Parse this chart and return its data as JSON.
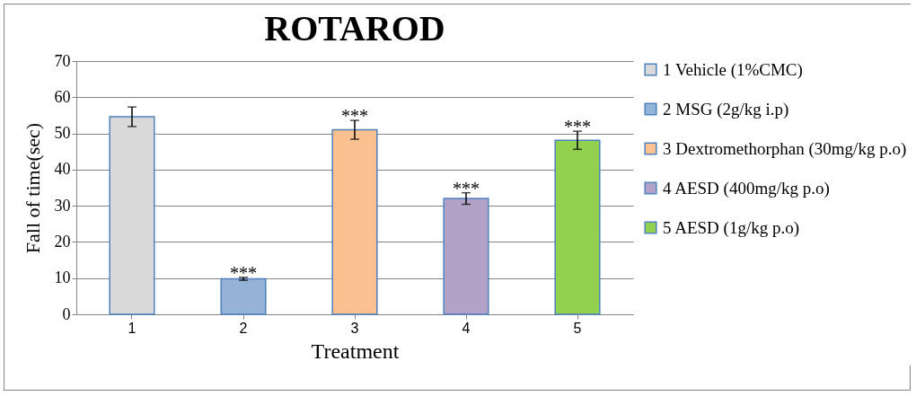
{
  "chart_data": {
    "type": "bar",
    "title": "ROTAROD",
    "xlabel": "Treatment",
    "ylabel": "Fall of time(sec)",
    "categories": [
      "1",
      "2",
      "3",
      "4",
      "5"
    ],
    "series": [
      {
        "name": "1 Vehicle (1%CMC)",
        "color": "#d9d9d9",
        "values": [
          54.6,
          null,
          null,
          null,
          null
        ],
        "errors": [
          2.7,
          null,
          null,
          null,
          null
        ]
      },
      {
        "name": "2 MSG (2g/kg i.p)",
        "color": "#95b3d7",
        "values": [
          null,
          9.8,
          null,
          null,
          null
        ],
        "errors": [
          null,
          0.4,
          null,
          null,
          null
        ]
      },
      {
        "name": "3 Dextromethorphan (30mg/kg p.o)",
        "color": "#fac090",
        "values": [
          null,
          null,
          51.0,
          null,
          null
        ],
        "errors": [
          null,
          null,
          2.6,
          null,
          null
        ]
      },
      {
        "name": "4 AESD (400mg/kg p.o)",
        "color": "#b3a2c7",
        "values": [
          null,
          null,
          null,
          32.0,
          null
        ],
        "errors": [
          null,
          null,
          null,
          1.6,
          null
        ]
      },
      {
        "name": "5 AESD (1g/kg p.o)",
        "color": "#92d050",
        "values": [
          null,
          null,
          null,
          null,
          48.1
        ],
        "errors": [
          null,
          null,
          null,
          null,
          2.5
        ]
      }
    ],
    "annotations": [
      {
        "text": "***",
        "x": "2",
        "y": 10.2
      },
      {
        "text": "***",
        "x": "3",
        "y": 53.6
      },
      {
        "text": "***",
        "x": "4",
        "y": 33.6
      },
      {
        "text": "***",
        "x": "5",
        "y": 50.6
      }
    ],
    "ylim": [
      0,
      70
    ],
    "yticks": [
      0,
      10,
      20,
      30,
      40,
      50,
      60,
      70
    ],
    "grid": "y",
    "legend": "right"
  }
}
